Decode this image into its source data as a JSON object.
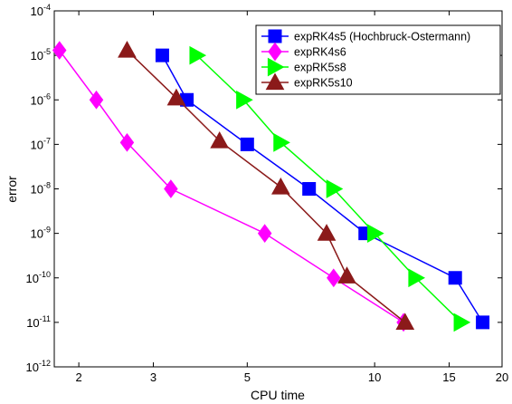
{
  "chart_data": {
    "type": "line",
    "xlabel": "CPU time",
    "ylabel": "error",
    "xscale": "log",
    "yscale": "log",
    "xlim": [
      1.75,
      20
    ],
    "ylim": [
      1e-12,
      0.0001
    ],
    "x_ticks": [
      2,
      3,
      5,
      10,
      15,
      20
    ],
    "x_tick_labels": [
      "2",
      "3",
      "5",
      "10",
      "15",
      "20"
    ],
    "y_ticks": [
      1e-12,
      1e-11,
      1e-10,
      1e-09,
      1e-08,
      1e-07,
      1e-06,
      1e-05,
      0.0001
    ],
    "y_tick_bases": [
      "10",
      "10",
      "10",
      "10",
      "10",
      "10",
      "10",
      "10",
      "10"
    ],
    "y_tick_exponents": [
      "-12",
      "-11",
      "-10",
      "-9",
      "-8",
      "-7",
      "-6",
      "-5",
      "-4"
    ],
    "grid": false,
    "legend_position": "top-right",
    "series": [
      {
        "name": "expRK4s5 (Hochbruck-Ostermann)",
        "color": "#0000ff",
        "marker": "square",
        "x": [
          3.15,
          3.6,
          5.0,
          7.0,
          9.5,
          15.5,
          18.0
        ],
        "y": [
          1e-05,
          1e-06,
          1e-07,
          1e-08,
          1e-09,
          1e-10,
          1e-11
        ]
      },
      {
        "name": "expRK4s6",
        "color": "#ff00ff",
        "marker": "diamond",
        "x": [
          1.8,
          2.2,
          2.6,
          3.3,
          5.5,
          8.0,
          11.7
        ],
        "y": [
          1.3e-05,
          1e-06,
          1.1e-07,
          1e-08,
          1e-09,
          1e-10,
          1e-11
        ]
      },
      {
        "name": "expRK5s8",
        "color": "#00ff00",
        "marker": "triangle-right",
        "x": [
          3.8,
          4.9,
          6.0,
          8.0,
          10.0,
          12.5,
          16.0
        ],
        "y": [
          1e-05,
          1e-06,
          1.1e-07,
          1e-08,
          1e-09,
          1e-10,
          1e-11
        ]
      },
      {
        "name": "expRK5s10",
        "color": "#8b1a1a",
        "marker": "triangle-up",
        "x": [
          2.6,
          3.4,
          4.3,
          6.0,
          7.7,
          8.6,
          11.8
        ],
        "y": [
          1.3e-05,
          1.1e-06,
          1.2e-07,
          1.1e-08,
          1e-09,
          1.1e-10,
          1e-11
        ]
      }
    ]
  }
}
